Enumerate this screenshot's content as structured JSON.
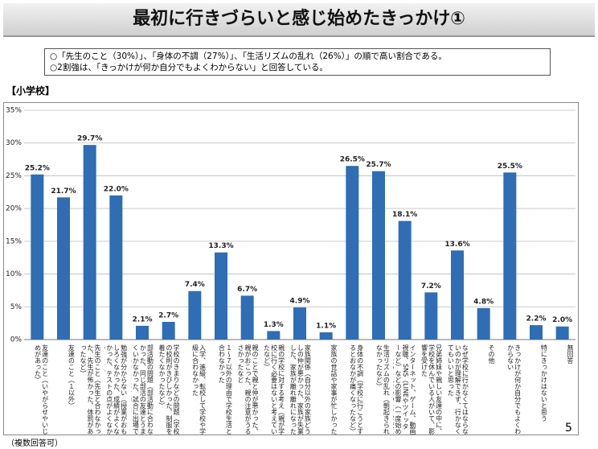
{
  "header": {
    "title": "最初に行きづらいと感じ始めたきっかけ①"
  },
  "notes": [
    "○「先生のこと（30%）」、「身体の不調（27%）」、「生活リズムの乱れ（26%）」の順で高い割合である。",
    "○2割強は、「きっかけが何か自分でもよくわからない」と回答している。"
  ],
  "section": "【小学校】",
  "footnote": "（複数回答可）",
  "page_number": "5",
  "chart_data": {
    "type": "bar",
    "color": "#2f6db5",
    "grid": true,
    "categories": [
      "友達のこと（いやがらせやいじめがあった）",
      "友達のこと（１以外）",
      "先生のこと（先生と合わなかった、先生が怖かった、体罰があったなど）",
      "勉強が分からない（授業がおもしろくなかった、成績がよくなかった、テストの点がよくなかったなど）",
      "部活動の問題（部活動に合わなかった、同じ部活の友達とうまくいかなかった、試合に出場できなかった、部活動に行きたくなかったなど）",
      "学校のきまりなどの問題（学校の校則がきびしかった、制服を着たくなかったなど）",
      "入学、進級、転校して学校や学級に合わなかった",
      "１～７以外の理由で学校生活と合わなかった",
      "親のことで親と仲が悪かった、親がおこった、親の注意がうるさかったなど",
      "親の学校に対する考え（親が学校に行く必要はないと考えていたなど）",
      "家族関係（自分以外の家族どうしの仲が悪かった、家族が失業した、家族が離れ離れになったなど）",
      "家族の世話や家事が忙しかった",
      "身体の不調（学校に行こうとするとおなかが痛くなったなど）",
      "生活リズムの乱れ（朝起きられなかったなど）",
      "インターネット、ゲーム、動画視聴、SNS（LINEやツイッターなど）などの影響（一度始めると止められなかった、学校に行くより楽しかったなど）",
      "兄弟姉妹や親しい友達の中に、学校を休んでいる人がいて、影響を受けた",
      "なぜ学校に行かなくてはならないのかが理解できず、行かなくてもいいと思った",
      "その他",
      "きっかけが何か自分でもよくわからない",
      "特にきっかけはないと思う",
      "無回答"
    ],
    "values": [
      25.2,
      21.7,
      29.7,
      22.0,
      2.1,
      2.7,
      7.4,
      13.3,
      6.7,
      1.3,
      4.9,
      1.1,
      26.5,
      25.7,
      18.1,
      7.2,
      13.6,
      4.8,
      25.5,
      2.2,
      2.0
    ],
    "value_labels": [
      "25.2%",
      "21.7%",
      "29.7%",
      "22.0%",
      "2.1%",
      "2.7%",
      "7.4%",
      "13.3%",
      "6.7%",
      "1.3%",
      "4.9%",
      "1.1%",
      "26.5%",
      "25.7%",
      "18.1%",
      "7.2%",
      "13.6%",
      "4.8%",
      "25.5%",
      "2.2%",
      "2.0%"
    ],
    "ylim": [
      0,
      35
    ],
    "yticks": [
      {
        "value": 0,
        "label": "0%"
      },
      {
        "value": 5,
        "label": "5%"
      },
      {
        "value": 10,
        "label": "10%"
      },
      {
        "value": 15,
        "label": "15%"
      },
      {
        "value": 20,
        "label": "20%"
      },
      {
        "value": 25,
        "label": "25%"
      },
      {
        "value": 30,
        "label": "30%"
      },
      {
        "value": 35,
        "label": "35%"
      }
    ]
  }
}
